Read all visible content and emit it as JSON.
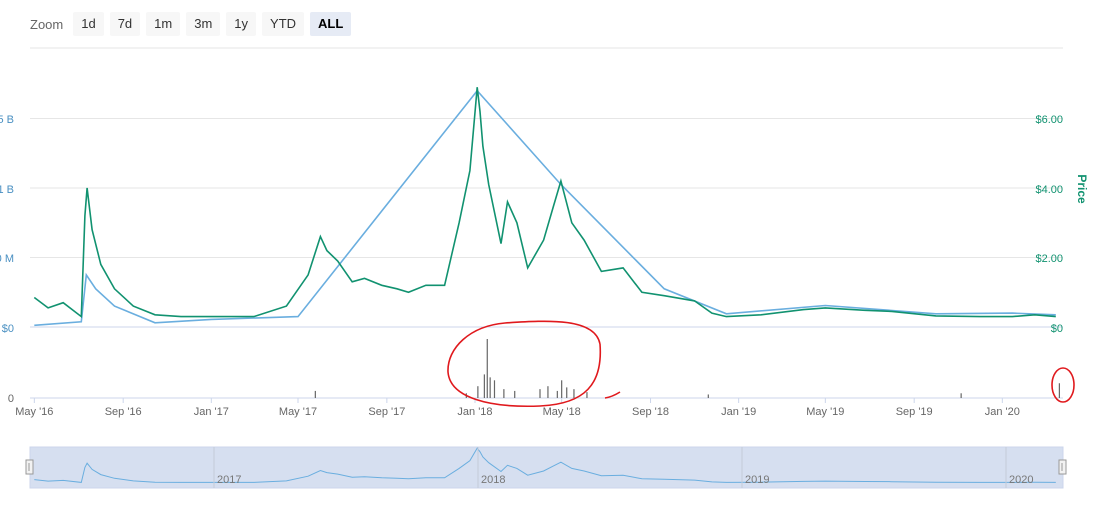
{
  "zoom": {
    "label": "Zoom",
    "buttons": [
      "1d",
      "7d",
      "1m",
      "3m",
      "1y",
      "YTD",
      "ALL"
    ],
    "active": "ALL"
  },
  "chart_data": {
    "type": "line",
    "title": "",
    "x_tick_labels": [
      "May '16",
      "Sep '16",
      "Jan '17",
      "May '17",
      "Sep '17",
      "Jan '18",
      "May '18",
      "Sep '18",
      "Jan '19",
      "May '19",
      "Sep '19",
      "Jan '20"
    ],
    "left_axis_labels": [
      "$0",
      "0 M",
      "1 B",
      "5 B"
    ],
    "right_axis_title": "Price",
    "right_axis_labels": [
      "$0",
      "$2.00",
      "$4.00",
      "$6.00"
    ],
    "volume_axis_labels": [
      "0"
    ],
    "navigator_labels": [
      "2017",
      "2018",
      "2019",
      "2020"
    ],
    "colors": {
      "price": "#119270",
      "market_cap": "#6aaedf",
      "volume": "#666666",
      "annotation": "#e0191d",
      "navigator_fill": "#d6dff0"
    },
    "series": [
      {
        "axis": "right",
        "x": [
          "2016-05-01",
          "2016-05-20",
          "2016-06-10",
          "2016-07-05",
          "2016-07-10",
          "2016-07-13",
          "2016-07-20",
          "2016-08-01",
          "2016-08-20",
          "2016-09-15",
          "2016-10-15",
          "2016-11-20",
          "2017-01-01",
          "2017-03-01",
          "2017-04-15",
          "2017-05-15",
          "2017-06-01",
          "2017-06-10",
          "2017-06-25",
          "2017-07-15",
          "2017-08-01",
          "2017-08-25",
          "2017-09-15",
          "2017-10-01",
          "2017-10-25",
          "2017-11-20",
          "2017-12-10",
          "2017-12-25",
          "2018-01-04",
          "2018-01-08",
          "2018-01-12",
          "2018-01-20",
          "2018-02-06",
          "2018-02-15",
          "2018-02-28",
          "2018-03-15",
          "2018-04-06",
          "2018-04-20",
          "2018-04-30",
          "2018-05-15",
          "2018-06-01",
          "2018-06-25",
          "2018-07-25",
          "2018-08-20",
          "2018-09-20",
          "2018-11-01",
          "2018-11-25",
          "2018-12-15",
          "2019-02-01",
          "2019-04-01",
          "2019-05-01",
          "2019-06-25",
          "2019-08-01",
          "2019-10-01",
          "2019-12-01",
          "2020-01-15",
          "2020-02-15",
          "2020-03-15"
        ],
        "values": [
          0.85,
          0.55,
          0.7,
          0.3,
          3.2,
          4.0,
          2.8,
          1.8,
          1.1,
          0.6,
          0.35,
          0.3,
          0.3,
          0.3,
          0.6,
          1.5,
          2.6,
          2.2,
          1.9,
          1.3,
          1.4,
          1.2,
          1.1,
          1.0,
          1.2,
          1.2,
          3.0,
          4.5,
          6.9,
          6.2,
          5.2,
          4.1,
          2.4,
          3.6,
          3.0,
          1.7,
          2.5,
          3.5,
          4.2,
          3.0,
          2.5,
          1.6,
          1.7,
          1.0,
          0.9,
          0.75,
          0.4,
          0.3,
          0.35,
          0.5,
          0.55,
          0.48,
          0.45,
          0.32,
          0.3,
          0.3,
          0.35,
          0.3
        ]
      },
      {
        "axis": "left",
        "x": [
          "2016-05-01",
          "2016-07-05",
          "2016-07-12",
          "2016-07-25",
          "2016-08-20",
          "2016-10-15",
          "2017-01-01",
          "2017-05-01",
          "2018-01-04",
          "2018-04-30",
          "2018-09-20",
          "2018-12-15",
          "2019-05-01",
          "2019-10-01",
          "2020-01-15",
          "2020-03-15"
        ],
        "values": [
          0.05,
          0.15,
          1.5,
          1.1,
          0.6,
          0.12,
          0.22,
          0.3,
          6.8,
          4.1,
          1.1,
          0.38,
          0.62,
          0.38,
          0.4,
          0.35
        ]
      }
    ],
    "volume": {
      "x": [
        "2017-05-25",
        "2017-12-20",
        "2018-01-05",
        "2018-01-14",
        "2018-01-18",
        "2018-01-22",
        "2018-01-28",
        "2018-02-10",
        "2018-02-25",
        "2018-04-01",
        "2018-04-12",
        "2018-04-25",
        "2018-05-01",
        "2018-05-08",
        "2018-05-18",
        "2018-06-05",
        "2018-11-20",
        "2019-11-05",
        "2020-03-20"
      ],
      "values": [
        0.12,
        0.08,
        0.2,
        0.4,
        1.0,
        0.35,
        0.3,
        0.15,
        0.12,
        0.15,
        0.2,
        0.12,
        0.3,
        0.18,
        0.15,
        0.1,
        0.06,
        0.08,
        0.25
      ]
    }
  }
}
